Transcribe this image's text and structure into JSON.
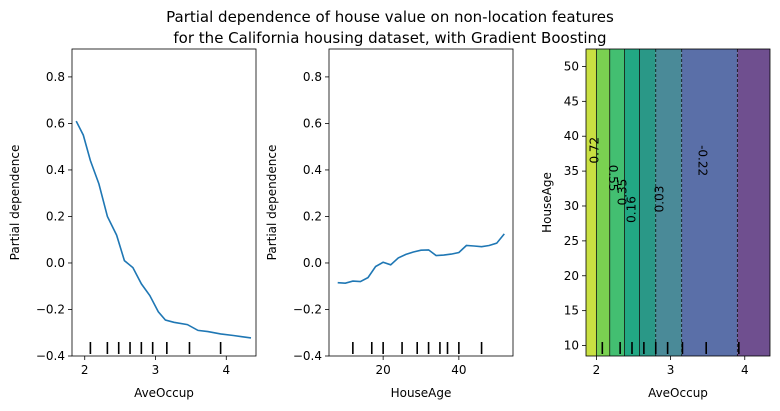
{
  "title_lines": [
    "Partial dependence of house value on non-location features",
    "for the California housing dataset, with Gradient Boosting"
  ],
  "chart_data": [
    {
      "type": "line",
      "xlabel": "AveOccup",
      "ylabel": "Partial dependence",
      "xlim": [
        1.82,
        4.42
      ],
      "ylim": [
        -0.4,
        0.92
      ],
      "xticks": [
        2,
        3,
        4
      ],
      "yticks": [
        -0.4,
        -0.2,
        0.0,
        0.2,
        0.4,
        0.6,
        0.8
      ],
      "ytick_labels": [
        "−0.4",
        "−0.2",
        "0.0",
        "0.2",
        "0.4",
        "0.6",
        "0.8"
      ],
      "line_color": "#1f77b4",
      "series": [
        {
          "x": [
            1.88,
            1.98,
            2.08,
            2.2,
            2.32,
            2.45,
            2.56,
            2.68,
            2.8,
            2.92,
            3.04,
            3.14,
            3.26,
            3.45,
            3.6,
            3.74,
            3.92,
            4.1,
            4.22,
            4.35
          ],
          "y": [
            0.61,
            0.55,
            0.44,
            0.34,
            0.2,
            0.12,
            0.01,
            -0.02,
            -0.09,
            -0.14,
            -0.21,
            -0.245,
            -0.255,
            -0.265,
            -0.29,
            -0.295,
            -0.305,
            -0.312,
            -0.317,
            -0.322
          ]
        }
      ],
      "deciles": [
        2.08,
        2.32,
        2.48,
        2.64,
        2.8,
        2.96,
        3.16,
        3.48,
        3.92
      ]
    },
    {
      "type": "line",
      "xlabel": "HouseAge",
      "ylabel": "Partial dependence",
      "xlim": [
        5.7,
        54.3
      ],
      "ylim": [
        -0.4,
        0.92
      ],
      "xticks": [
        20,
        40
      ],
      "yticks": [
        -0.4,
        -0.2,
        0.0,
        0.2,
        0.4,
        0.6,
        0.8
      ],
      "ytick_labels": [
        "−0.4",
        "−0.2",
        "0.0",
        "0.2",
        "0.4",
        "0.6",
        "0.8"
      ],
      "line_color": "#1f77b4",
      "series": [
        {
          "x": [
            8,
            10,
            12,
            14,
            16,
            18,
            20,
            22,
            24,
            26,
            28,
            30,
            32,
            34,
            36,
            38,
            40,
            42,
            44,
            46,
            48,
            50,
            52
          ],
          "y": [
            -0.085,
            -0.087,
            -0.078,
            -0.08,
            -0.063,
            -0.015,
            0.003,
            -0.008,
            0.022,
            0.037,
            0.047,
            0.055,
            0.056,
            0.032,
            0.034,
            0.038,
            0.045,
            0.075,
            0.073,
            0.07,
            0.075,
            0.085,
            0.125
          ]
        }
      ],
      "deciles": [
        12,
        17,
        20,
        25,
        29,
        32,
        35,
        37,
        40,
        46
      ]
    },
    {
      "type": "contour",
      "xlabel": "AveOccup",
      "ylabel": "HouseAge",
      "xlim": [
        1.86,
        4.34
      ],
      "ylim": [
        8.5,
        52.5
      ],
      "xticks": [
        2,
        3,
        4
      ],
      "yticks": [
        10,
        15,
        20,
        25,
        30,
        35,
        40,
        45,
        50
      ],
      "bands": [
        {
          "x": [
            1.86,
            2.0
          ],
          "color": "#c9e042"
        },
        {
          "x": [
            2.0,
            2.18
          ],
          "color": "#7ad151"
        },
        {
          "x": [
            2.18,
            2.38
          ],
          "color": "#43bf71"
        },
        {
          "x": [
            2.38,
            2.58
          ],
          "color": "#22a884"
        },
        {
          "x": [
            2.58,
            2.8
          ],
          "color": "#2a9887"
        },
        {
          "x": [
            2.8,
            3.15
          ],
          "color": "#4a8a98"
        },
        {
          "x": [
            3.15,
            3.9
          ],
          "color": "#5a6fa8"
        },
        {
          "x": [
            3.9,
            4.34
          ],
          "color": "#6f4f8f"
        }
      ],
      "contour_labels": [
        {
          "text": "0.72",
          "x": 1.98,
          "y": 38,
          "rotation": -90
        },
        {
          "text": "0.55",
          "x": 2.22,
          "y": 34,
          "rotation": 90
        },
        {
          "text": "0.35",
          "x": 2.36,
          "y": 32,
          "rotation": -90
        },
        {
          "text": "0.16",
          "x": 2.48,
          "y": 29.5,
          "rotation": -90
        },
        {
          "text": "0.03",
          "x": 2.86,
          "y": 31,
          "rotation": -90
        },
        {
          "text": "-0.22",
          "x": 3.42,
          "y": 36.5,
          "rotation": 90
        }
      ],
      "deciles": [
        2.08,
        2.32,
        2.48,
        2.64,
        2.8,
        2.96,
        3.16,
        3.48,
        3.92
      ]
    }
  ]
}
